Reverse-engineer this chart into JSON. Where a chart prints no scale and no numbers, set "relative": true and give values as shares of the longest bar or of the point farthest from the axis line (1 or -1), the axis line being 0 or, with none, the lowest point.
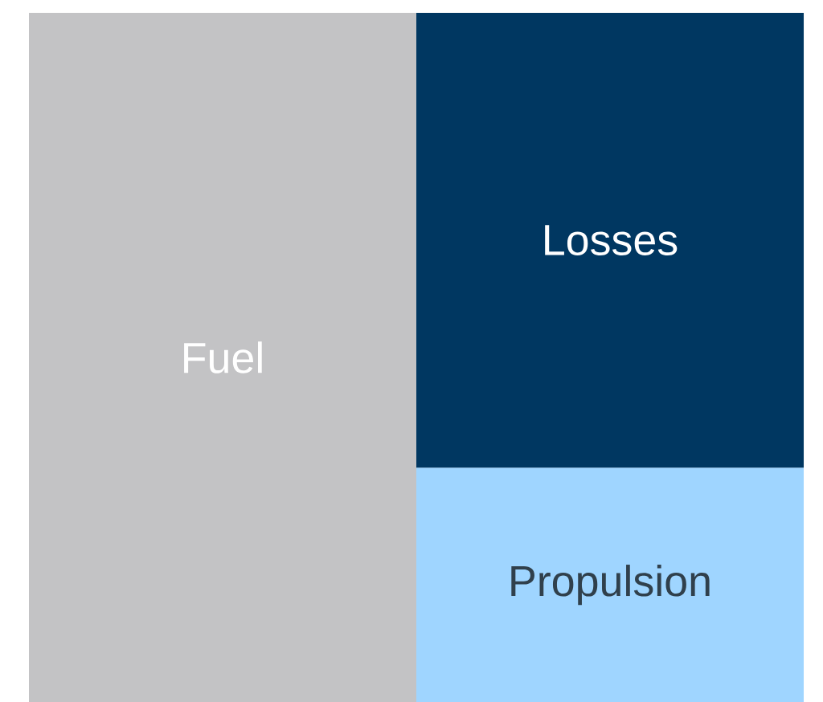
{
  "chart_data": {
    "type": "bar",
    "relative": true,
    "stacked": true,
    "categories": [
      null,
      null
    ],
    "series": [
      {
        "name": "Fuel",
        "color": "#c3c3c5",
        "values": [
          1,
          null
        ]
      },
      {
        "name": "Propulsion",
        "color": "#9fd5ff",
        "values": [
          null,
          0.34
        ]
      },
      {
        "name": "Losses",
        "color": "#003761",
        "values": [
          null,
          0.66
        ]
      }
    ]
  }
}
